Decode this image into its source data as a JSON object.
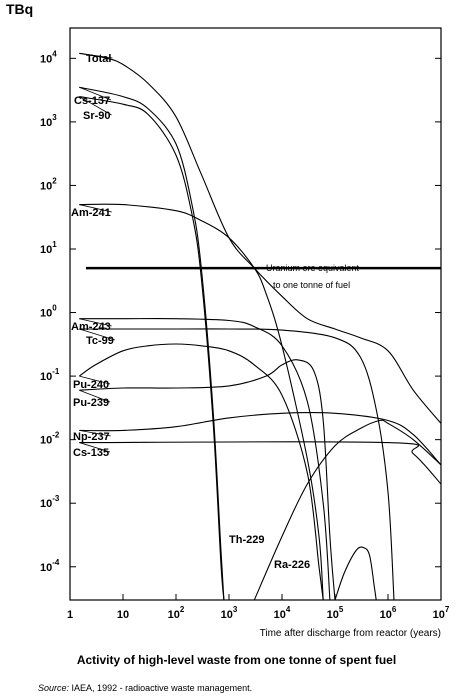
{
  "caption": "Activity of high-level waste from one tonne of spent fuel",
  "source": {
    "label": "Source:",
    "text": "IAEA, 1992 - radioactive waste management."
  },
  "chart_data": {
    "type": "line",
    "unit_label": "TBq",
    "xlabel": "Time after discharge from reactor (years)",
    "x_scale": "log",
    "y_scale": "log",
    "xlim": [
      1,
      10000000
    ],
    "ylim": [
      3e-05,
      30000
    ],
    "grid": false,
    "x_ticks": [
      {
        "value": 1,
        "base": "1",
        "exp": ""
      },
      {
        "value": 10,
        "base": "10",
        "exp": ""
      },
      {
        "value": 100,
        "base": "10",
        "exp": "2"
      },
      {
        "value": 1000,
        "base": "10",
        "exp": "3"
      },
      {
        "value": 10000,
        "base": "10",
        "exp": "4"
      },
      {
        "value": 100000,
        "base": "10",
        "exp": "5"
      },
      {
        "value": 1000000,
        "base": "10",
        "exp": "6"
      },
      {
        "value": 10000000,
        "base": "10",
        "exp": "7"
      }
    ],
    "y_ticks": [
      {
        "value": 0.0001,
        "base": "10",
        "exp": "-4"
      },
      {
        "value": 0.001,
        "base": "10",
        "exp": "-3"
      },
      {
        "value": 0.01,
        "base": "10",
        "exp": "-2"
      },
      {
        "value": 0.1,
        "base": "10",
        "exp": "-1"
      },
      {
        "value": 1,
        "base": "10",
        "exp": "0"
      },
      {
        "value": 10,
        "base": "10",
        "exp": "1"
      },
      {
        "value": 100,
        "base": "10",
        "exp": "2"
      },
      {
        "value": 1000,
        "base": "10",
        "exp": "3"
      },
      {
        "value": 10000,
        "base": "10",
        "exp": "4"
      }
    ],
    "reference_line": {
      "value": 5,
      "x_start": 2,
      "x_end": 10000000,
      "label_line1": "Uranium ore equivalent",
      "label_line2": "to one tonne of fuel"
    },
    "series": [
      {
        "name": "Total",
        "points": [
          [
            1.5,
            12000
          ],
          [
            5,
            10000
          ],
          [
            10,
            8000
          ],
          [
            30,
            4000
          ],
          [
            100,
            1200
          ],
          [
            300,
            150
          ],
          [
            1000,
            15
          ],
          [
            3000,
            5
          ],
          [
            10000,
            1.8
          ],
          [
            30000,
            0.8
          ],
          [
            100000,
            0.55
          ],
          [
            300000,
            0.4
          ],
          [
            1000000,
            0.25
          ],
          [
            3000000,
            0.06
          ],
          [
            10000000,
            0.018
          ]
        ]
      },
      {
        "name": "Cs-137",
        "points": [
          [
            1.5,
            3500
          ],
          [
            10,
            2500
          ],
          [
            30,
            1600
          ],
          [
            100,
            450
          ],
          [
            200,
            50
          ],
          [
            300,
            5
          ],
          [
            500,
            0.03
          ],
          [
            700,
            0.0002
          ],
          [
            800,
            3e-05
          ]
        ]
      },
      {
        "name": "Sr-90",
        "points": [
          [
            1.5,
            2500
          ],
          [
            10,
            1900
          ],
          [
            30,
            1300
          ],
          [
            100,
            300
          ],
          [
            200,
            35
          ],
          [
            300,
            3.5
          ],
          [
            500,
            0.02
          ],
          [
            700,
            0.00012
          ],
          [
            800,
            3e-05
          ]
        ]
      },
      {
        "name": "Am-241",
        "points": [
          [
            1.5,
            50
          ],
          [
            10,
            50
          ],
          [
            100,
            40
          ],
          [
            300,
            28
          ],
          [
            1000,
            15
          ],
          [
            3000,
            5
          ],
          [
            5000,
            2
          ],
          [
            10000,
            0.3
          ],
          [
            30000,
            0.005
          ],
          [
            50000,
            0.0003
          ],
          [
            60000,
            3e-05
          ]
        ]
      },
      {
        "name": "Am-243",
        "points": [
          [
            1.5,
            0.8
          ],
          [
            10,
            0.8
          ],
          [
            100,
            0.8
          ],
          [
            1000,
            0.75
          ],
          [
            3000,
            0.6
          ],
          [
            10000,
            0.3
          ],
          [
            30000,
            0.04
          ],
          [
            60000,
            0.001
          ],
          [
            80000,
            3e-05
          ]
        ]
      },
      {
        "name": "Tc-99",
        "points": [
          [
            1.5,
            0.55
          ],
          [
            100,
            0.55
          ],
          [
            1000,
            0.55
          ],
          [
            10000,
            0.53
          ],
          [
            100000,
            0.4
          ],
          [
            300000,
            0.2
          ],
          [
            600000,
            0.03
          ],
          [
            1000000,
            0.0015
          ],
          [
            1300000,
            3e-05
          ]
        ]
      },
      {
        "name": "Pu-240",
        "points": [
          [
            1.5,
            0.1
          ],
          [
            3,
            0.15
          ],
          [
            10,
            0.25
          ],
          [
            30,
            0.3
          ],
          [
            100,
            0.32
          ],
          [
            300,
            0.3
          ],
          [
            1000,
            0.25
          ],
          [
            3000,
            0.15
          ],
          [
            10000,
            0.05
          ],
          [
            30000,
            0.003
          ],
          [
            50000,
            0.0001
          ],
          [
            60000,
            3e-05
          ]
        ]
      },
      {
        "name": "Pu-239",
        "points": [
          [
            1.5,
            0.06
          ],
          [
            10,
            0.065
          ],
          [
            100,
            0.065
          ],
          [
            1000,
            0.07
          ],
          [
            5000,
            0.1
          ],
          [
            10000,
            0.15
          ],
          [
            20000,
            0.18
          ],
          [
            40000,
            0.12
          ],
          [
            60000,
            0.02
          ],
          [
            80000,
            0.0003
          ],
          [
            100000,
            3e-05
          ]
        ]
      },
      {
        "name": "Np-237",
        "points": [
          [
            1.5,
            0.014
          ],
          [
            10,
            0.014
          ],
          [
            100,
            0.016
          ],
          [
            1000,
            0.022
          ],
          [
            10000,
            0.026
          ],
          [
            100000,
            0.026
          ],
          [
            1000000,
            0.02
          ],
          [
            3000000,
            0.012
          ],
          [
            10000000,
            0.004
          ]
        ]
      },
      {
        "name": "Cs-135",
        "points": [
          [
            1.5,
            0.009
          ],
          [
            1000000,
            0.009
          ],
          [
            3000000,
            0.006
          ],
          [
            10000000,
            0.002
          ]
        ]
      },
      {
        "name": "Th-229",
        "points": [
          [
            3000,
            3e-05
          ],
          [
            10000,
            0.0003
          ],
          [
            30000,
            0.002
          ],
          [
            100000,
            0.008
          ],
          [
            300000,
            0.015
          ],
          [
            700000,
            0.02
          ],
          [
            1000000,
            0.018
          ],
          [
            3000000,
            0.01
          ],
          [
            10000000,
            0.004
          ]
        ]
      },
      {
        "name": "Ra-226",
        "points": [
          [
            100000,
            3e-05
          ],
          [
            150000,
            8e-05
          ],
          [
            250000,
            0.00018
          ],
          [
            350000,
            0.0002
          ],
          [
            450000,
            0.00015
          ],
          [
            550000,
            5e-05
          ],
          [
            600000,
            3e-05
          ]
        ]
      }
    ]
  }
}
